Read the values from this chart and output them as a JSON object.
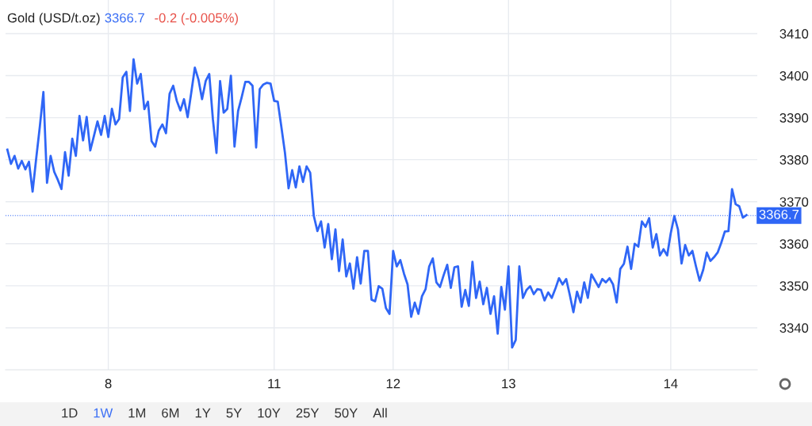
{
  "chart_data": {
    "type": "line",
    "title": "Gold (USD/t.oz)",
    "annotations": [
      "3366.7",
      "-0.2 (-0.005%)",
      "1D",
      "1W",
      "1M",
      "6M",
      "1Y",
      "5Y",
      "10Y",
      "25Y",
      "50Y",
      "All"
    ],
    "categories": [
      null,
      null,
      null,
      null,
      null,
      null,
      null,
      null,
      null,
      null,
      null,
      null,
      null,
      null,
      null,
      null,
      null,
      null,
      null,
      null,
      null,
      null,
      null,
      null,
      null,
      null,
      null,
      null,
      "8",
      null,
      null,
      null,
      null,
      null,
      null,
      null,
      null,
      null,
      null,
      null,
      null,
      null,
      null,
      null,
      null,
      null,
      null,
      null,
      null,
      null,
      null,
      null,
      null,
      null,
      null,
      null,
      null,
      null,
      null,
      null,
      null,
      null,
      null,
      null,
      null,
      null,
      null,
      null,
      null,
      null,
      null,
      null,
      null,
      null,
      "11",
      null,
      null,
      null,
      null,
      null,
      null,
      null,
      null,
      null,
      null,
      null,
      null,
      null,
      null,
      null,
      null,
      null,
      null,
      null,
      null,
      null,
      null,
      null,
      null,
      null,
      null,
      null,
      null,
      null,
      null,
      null,
      null,
      "12",
      null,
      null,
      null,
      null,
      null,
      null,
      null,
      null,
      null,
      null,
      null,
      null,
      null,
      null,
      null,
      null,
      null,
      null,
      null,
      null,
      null,
      null,
      null,
      null,
      null,
      null,
      null,
      null,
      null,
      null,
      null,
      "13",
      null,
      null,
      null,
      null,
      null,
      null,
      null,
      null,
      null,
      null,
      null,
      null,
      null,
      null,
      null,
      null,
      null,
      null,
      null,
      null,
      null,
      null,
      null,
      null,
      null,
      null,
      null,
      null,
      null,
      null,
      null,
      null,
      null,
      null,
      null,
      null,
      null,
      null,
      null,
      null,
      null,
      null,
      null,
      null,
      "14",
      null,
      null,
      null,
      null,
      null,
      null,
      null,
      null,
      null,
      null,
      null,
      null,
      null,
      null,
      null,
      null,
      null,
      null,
      null,
      null,
      null
    ],
    "series": [
      {
        "color": "#2f66f6",
        "values": [
          3382.4,
          3379.0,
          3380.9,
          3377.9,
          3379.7,
          3377.7,
          3379.5,
          3372.4,
          3380.3,
          3387.8,
          3396.1,
          3374.5,
          3380.9,
          3377.1,
          3375.2,
          3373.0,
          3381.8,
          3376.2,
          3385.0,
          3380.9,
          3390.4,
          3384.6,
          3390.2,
          3382.2,
          3385.6,
          3389.1,
          3385.9,
          3390.4,
          3385.4,
          3392.1,
          3388.4,
          3389.7,
          3399.6,
          3400.9,
          3391.6,
          3403.9,
          3398.1,
          3400.4,
          3392.0,
          3393.8,
          3384.4,
          3383.1,
          3386.9,
          3388.4,
          3386.3,
          3395.7,
          3397.6,
          3394.0,
          3391.7,
          3394.4,
          3390.1,
          3395.9,
          3401.9,
          3399.1,
          3394.4,
          3398.7,
          3400.4,
          3389.7,
          3381.6,
          3398.7,
          3391.2,
          3392.1,
          3400.0,
          3383.1,
          3391.6,
          3394.9,
          3398.5,
          3398.5,
          3397.6,
          3382.9,
          3396.8,
          3397.9,
          3398.3,
          3398.1,
          3394.0,
          3393.8,
          3387.8,
          3381.6,
          3373.2,
          3377.5,
          3373.4,
          3378.4,
          3374.7,
          3378.4,
          3376.9,
          3366.6,
          3363.0,
          3365.3,
          3359.1,
          3364.7,
          3356.3,
          3363.4,
          3353.5,
          3361.0,
          3352.2,
          3355.3,
          3349.3,
          3356.8,
          3350.5,
          3358.3,
          3358.3,
          3346.7,
          3346.3,
          3349.9,
          3349.3,
          3344.7,
          3343.3,
          3358.3,
          3354.6,
          3356.1,
          3352.9,
          3350.3,
          3342.6,
          3346.0,
          3343.3,
          3347.5,
          3349.2,
          3354.6,
          3356.5,
          3350.8,
          3349.7,
          3352.5,
          3355.0,
          3349.5,
          3354.4,
          3354.6,
          3345.0,
          3349.0,
          3345.2,
          3355.7,
          3347.1,
          3351.0,
          3345.6,
          3349.5,
          3343.3,
          3347.5,
          3338.6,
          3349.7,
          3344.3,
          3354.6,
          3335.3,
          3337.1,
          3354.6,
          3347.1,
          3349.0,
          3349.9,
          3348.0,
          3349.2,
          3349.0,
          3346.5,
          3348.4,
          3347.1,
          3349.3,
          3351.8,
          3350.3,
          3351.6,
          3347.8,
          3343.7,
          3348.6,
          3346.0,
          3350.8,
          3347.1,
          3352.7,
          3351.2,
          3349.7,
          3351.6,
          3350.8,
          3351.8,
          3350.3,
          3346.0,
          3354.0,
          3355.2,
          3359.3,
          3354.0,
          3360.0,
          3359.3,
          3365.3,
          3364.0,
          3366.1,
          3359.1,
          3362.3,
          3357.2,
          3358.7,
          3357.2,
          3362.5,
          3366.6,
          3363.4,
          3355.3,
          3359.7,
          3357.2,
          3358.3,
          3354.6,
          3351.2,
          3353.8,
          3357.9,
          3355.9,
          3356.8,
          3357.9,
          3360.2,
          3362.9,
          3363.0,
          3373.0,
          3369.4,
          3368.9,
          3366.2,
          3366.8
        ]
      }
    ],
    "ylim": [
      3330,
      3418
    ],
    "yticks": [
      3340,
      3350,
      3360,
      3370,
      3380,
      3390,
      3400,
      3410
    ],
    "ref_lines": [
      {
        "axis": "y",
        "value": 3366.7,
        "label": "3366.7",
        "color": "#2f66f6",
        "line_style": "dotted"
      }
    ],
    "grid": true,
    "legend": false,
    "marker": "none",
    "line_style": "solid"
  }
}
